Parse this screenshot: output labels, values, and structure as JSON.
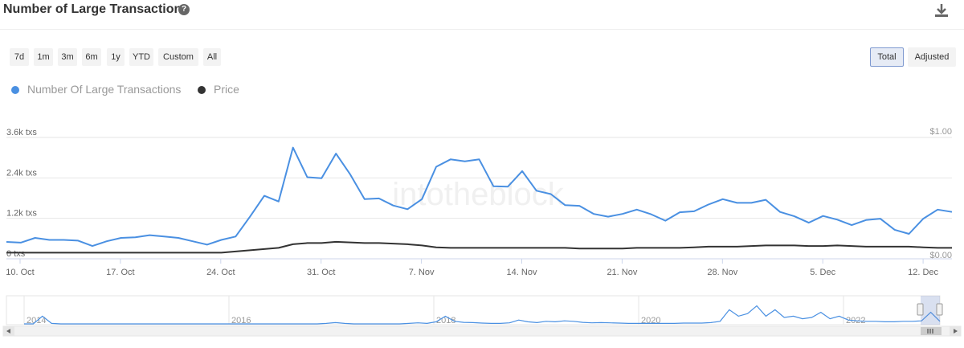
{
  "header": {
    "title": "Number of Large Transactions",
    "help_icon": "question-circle-icon",
    "download_icon": "download-icon"
  },
  "range_buttons": [
    "7d",
    "1m",
    "3m",
    "6m",
    "1y",
    "YTD",
    "Custom",
    "All"
  ],
  "mode_buttons": [
    {
      "label": "Total",
      "active": true
    },
    {
      "label": "Adjusted",
      "active": false
    }
  ],
  "watermark": "intotheblock",
  "colors": {
    "transactions": "#4a90e2",
    "price": "#333333",
    "grid": "#e6e6e6"
  },
  "chart_data": {
    "type": "line",
    "title": "Number of Large Transactions",
    "x_labels": [
      "10. Oct",
      "17. Oct",
      "24. Oct",
      "31. Oct",
      "7. Nov",
      "14. Nov",
      "21. Nov",
      "28. Nov",
      "5. Dec",
      "12. Dec"
    ],
    "y_left": {
      "ticks": [
        "0 txs",
        "1.2k txs",
        "2.4k txs",
        "3.6k txs"
      ],
      "range": [
        0,
        3600
      ],
      "unit": "txs"
    },
    "y_right": {
      "ticks": [
        "$0.00",
        "$1.00"
      ],
      "range": [
        0,
        1
      ]
    },
    "legend": {
      "placement": "top-left"
    },
    "series": [
      {
        "name": "Number Of Large Transactions",
        "axis": "left",
        "values": [
          500,
          480,
          620,
          560,
          560,
          540,
          380,
          520,
          620,
          640,
          700,
          660,
          620,
          520,
          420,
          560,
          660,
          1250,
          1870,
          1700,
          3300,
          2420,
          2390,
          3120,
          2500,
          1770,
          1790,
          1580,
          1470,
          1770,
          2730,
          2950,
          2890,
          2950,
          2150,
          2140,
          2600,
          2020,
          1920,
          1590,
          1570,
          1330,
          1250,
          1330,
          1460,
          1320,
          1130,
          1380,
          1410,
          1610,
          1770,
          1660,
          1660,
          1750,
          1390,
          1260,
          1070,
          1270,
          1160,
          1000,
          1150,
          1190,
          860,
          740,
          1190,
          1460,
          1390
        ]
      },
      {
        "name": "Price",
        "axis": "right",
        "values": [
          0.05,
          0.05,
          0.05,
          0.05,
          0.05,
          0.05,
          0.05,
          0.05,
          0.05,
          0.05,
          0.05,
          0.05,
          0.05,
          0.05,
          0.05,
          0.05,
          0.06,
          0.07,
          0.08,
          0.09,
          0.12,
          0.13,
          0.13,
          0.14,
          0.135,
          0.13,
          0.13,
          0.125,
          0.12,
          0.11,
          0.095,
          0.09,
          0.09,
          0.09,
          0.09,
          0.09,
          0.09,
          0.09,
          0.09,
          0.09,
          0.085,
          0.085,
          0.085,
          0.085,
          0.09,
          0.09,
          0.09,
          0.09,
          0.095,
          0.1,
          0.1,
          0.1,
          0.105,
          0.11,
          0.11,
          0.11,
          0.105,
          0.105,
          0.11,
          0.105,
          0.1,
          0.1,
          0.1,
          0.1,
          0.095,
          0.09,
          0.09
        ]
      }
    ],
    "navigator": {
      "x_labels": [
        "2014",
        "2016",
        "2018",
        "2020",
        "2022"
      ],
      "values": [
        0,
        0,
        0.3,
        0.02,
        0,
        0,
        0,
        0,
        0,
        0,
        0,
        0,
        0,
        0,
        0,
        0,
        0,
        0,
        0,
        0,
        0,
        0,
        0,
        0,
        0,
        0,
        0,
        0,
        0,
        0,
        0,
        0,
        0,
        0.02,
        0.05,
        0.02,
        0,
        0,
        0,
        0,
        0,
        0,
        0.02,
        0.04,
        0.02,
        0.08,
        0.3,
        0.1,
        0.06,
        0.05,
        0.03,
        0.02,
        0.02,
        0.04,
        0.15,
        0.08,
        0.05,
        0.1,
        0.08,
        0.12,
        0.1,
        0.06,
        0.04,
        0.05,
        0.04,
        0.03,
        0.02,
        0.02,
        0.02,
        0.02,
        0.02,
        0.02,
        0.03,
        0.03,
        0.03,
        0.05,
        0.1,
        0.55,
        0.3,
        0.4,
        0.7,
        0.3,
        0.55,
        0.25,
        0.3,
        0.2,
        0.25,
        0.45,
        0.2,
        0.3,
        0.15,
        0.12,
        0.1,
        0.1,
        0.08,
        0.08,
        0.1,
        0.1,
        0.12,
        0.45,
        0.1
      ]
    }
  }
}
